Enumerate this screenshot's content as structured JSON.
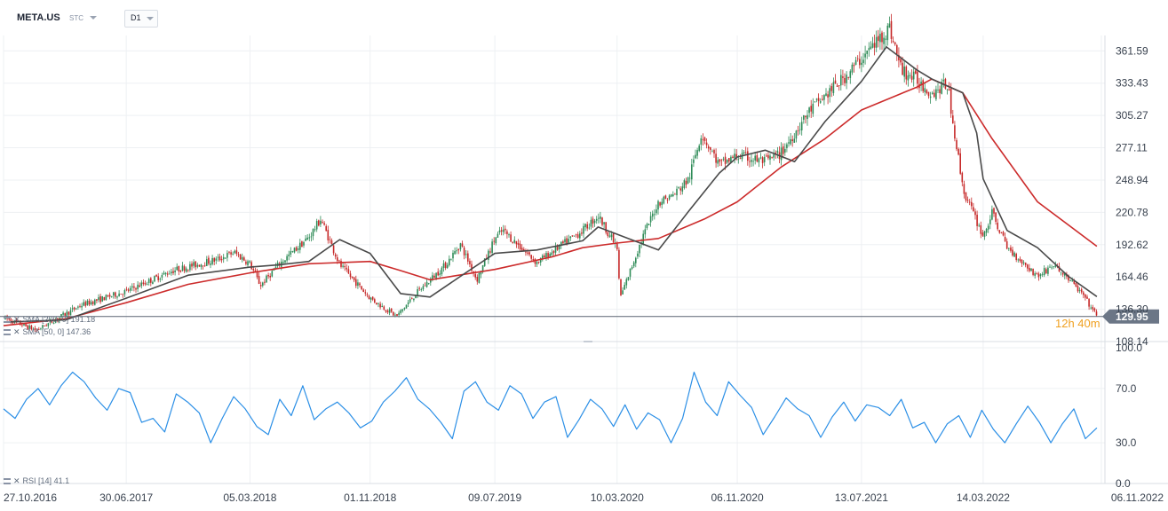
{
  "header": {
    "symbol": "META.US",
    "asset_type": "STC",
    "timeframe": "D1"
  },
  "indicators": {
    "sma200_label": "SMA [200, 0] 191.18",
    "sma50_label": "SMA [50, 0] 147.36",
    "rsi_label": "RSI [14] 41.1"
  },
  "countdown": "12h 40m",
  "colors": {
    "candle_up": "#2e8b57",
    "candle_down": "#c62828",
    "sma200": "#cc2b2b",
    "sma50": "#4a4a4a",
    "rsi": "#2b8fe6",
    "price_tag_bg": "#6b7686",
    "grid": "#eef0f3",
    "price_line": "#5a6472"
  },
  "chart_data": [
    {
      "type": "line",
      "subtype": "candlestick",
      "title": "META.US",
      "price_scale": {
        "min": 108.14,
        "max": 375,
        "ticks": [
          361.59,
          333.43,
          305.27,
          277.11,
          248.94,
          220.78,
          192.62,
          164.46,
          136.3,
          108.14
        ]
      },
      "x_tick_labels": [
        "27.10.2016",
        "30.06.2017",
        "05.03.2018",
        "01.11.2018",
        "09.07.2019",
        "10.03.2020",
        "06.11.2020",
        "13.07.2021",
        "14.03.2022",
        "06.11.2022"
      ],
      "last_price": 129.95,
      "price_path_x": [
        "27.10.2016",
        "01.01.2017",
        "01.04.2017",
        "30.06.2017",
        "01.10.2017",
        "01.01.2018",
        "01.02.2018",
        "05.03.2018",
        "26.03.2018",
        "01.05.2018",
        "01.07.2018",
        "25.07.2018",
        "01.09.2018",
        "01.11.2018",
        "24.12.2018",
        "01.02.2019",
        "01.04.2019",
        "01.05.2019",
        "03.06.2019",
        "09.07.2019",
        "25.07.2019",
        "01.10.2019",
        "01.01.2020",
        "01.02.2020",
        "10.03.2020",
        "16.03.2020",
        "01.05.2020",
        "01.06.2020",
        "01.07.2020",
        "01.08.2020",
        "26.08.2020",
        "01.10.2020",
        "06.11.2020",
        "01.12.2020",
        "01.01.2021",
        "01.02.2021",
        "01.04.2021",
        "01.06.2021",
        "13.07.2021",
        "07.09.2021",
        "01.10.2021",
        "01.11.2021",
        "01.12.2021",
        "01.01.2022",
        "02.02.2022",
        "14.03.2022",
        "01.04.2022",
        "01.05.2022",
        "01.07.2022",
        "01.08.2022",
        "01.09.2022",
        "01.10.2022",
        "28.10.2022"
      ],
      "price_path_y": [
        129,
        118,
        140,
        152,
        170,
        180,
        186,
        176,
        157,
        175,
        199,
        215,
        175,
        146,
        130,
        150,
        175,
        193,
        162,
        198,
        205,
        177,
        205,
        218,
        190,
        146,
        200,
        230,
        236,
        250,
        290,
        262,
        270,
        268,
        265,
        272,
        310,
        335,
        355,
        382,
        345,
        336,
        325,
        333,
        240,
        200,
        220,
        190,
        165,
        175,
        163,
        148,
        130
      ],
      "sma50": {
        "name": "SMA [50, 0]",
        "last": 147.36,
        "x": [
          "27.10.2016",
          "01.03.2017",
          "30.06.2017",
          "01.11.2017",
          "05.03.2018",
          "01.05.2018",
          "01.07.2018",
          "01.09.2018",
          "01.11.2018",
          "01.01.2019",
          "01.03.2019",
          "01.05.2019",
          "09.07.2019",
          "01.10.2019",
          "01.01.2020",
          "01.02.2020",
          "01.04.2020",
          "01.06.2020",
          "01.08.2020",
          "01.10.2020",
          "06.11.2020",
          "01.01.2021",
          "01.03.2021",
          "01.05.2021",
          "13.07.2021",
          "01.09.2021",
          "01.11.2021",
          "01.12.2021",
          "01.02.2022",
          "01.03.2022",
          "14.03.2022",
          "01.05.2022",
          "01.07.2022",
          "01.09.2022",
          "28.10.2022"
        ],
        "y": [
          125,
          127,
          146,
          166,
          173,
          175,
          178,
          197,
          185,
          150,
          147,
          165,
          185,
          188,
          196,
          208,
          198,
          188,
          222,
          255,
          269,
          275,
          265,
          300,
          335,
          365,
          345,
          337,
          325,
          290,
          250,
          205,
          190,
          165,
          147.36
        ]
      },
      "sma200": {
        "name": "SMA [200, 0]",
        "last": 191.18,
        "x": [
          "27.10.2016",
          "01.03.2017",
          "30.06.2017",
          "01.11.2017",
          "05.03.2018",
          "01.07.2018",
          "01.11.2018",
          "01.01.2019",
          "01.03.2019",
          "09.07.2019",
          "01.11.2019",
          "01.01.2020",
          "10.03.2020",
          "01.06.2020",
          "01.09.2020",
          "06.11.2020",
          "01.02.2021",
          "01.05.2021",
          "13.07.2021",
          "01.11.2021",
          "01.12.2021",
          "01.02.2022",
          "01.04.2022",
          "01.07.2022",
          "28.10.2022"
        ],
        "y": [
          122,
          128,
          142,
          158,
          168,
          176,
          178,
          170,
          162,
          171,
          182,
          190,
          194,
          198,
          215,
          230,
          260,
          285,
          310,
          330,
          337,
          325,
          285,
          230,
          191.18
        ]
      }
    },
    {
      "type": "line",
      "title": "RSI [14]",
      "last": 41.1,
      "ylim": [
        0,
        100
      ],
      "ticks": [
        100.0,
        70.0,
        30.0,
        0.0
      ],
      "series": [
        {
          "name": "RSI [14]",
          "values": [
            55,
            48,
            62,
            70,
            58,
            72,
            82,
            75,
            63,
            54,
            70,
            67,
            45,
            48,
            38,
            66,
            60,
            52,
            30,
            48,
            64,
            55,
            42,
            36,
            62,
            50,
            72,
            47,
            55,
            60,
            52,
            41,
            46,
            60,
            68,
            78,
            62,
            55,
            45,
            33,
            68,
            75,
            60,
            54,
            72,
            66,
            48,
            60,
            64,
            34,
            47,
            62,
            55,
            42,
            58,
            40,
            52,
            47,
            30,
            48,
            82,
            60,
            50,
            75,
            65,
            56,
            36,
            49,
            63,
            55,
            50,
            34,
            49,
            60,
            46,
            58,
            56,
            50,
            62,
            41,
            45,
            30,
            44,
            50,
            34,
            54,
            40,
            30,
            44,
            57,
            45,
            30,
            44,
            55,
            33,
            41
          ]
        }
      ]
    }
  ]
}
